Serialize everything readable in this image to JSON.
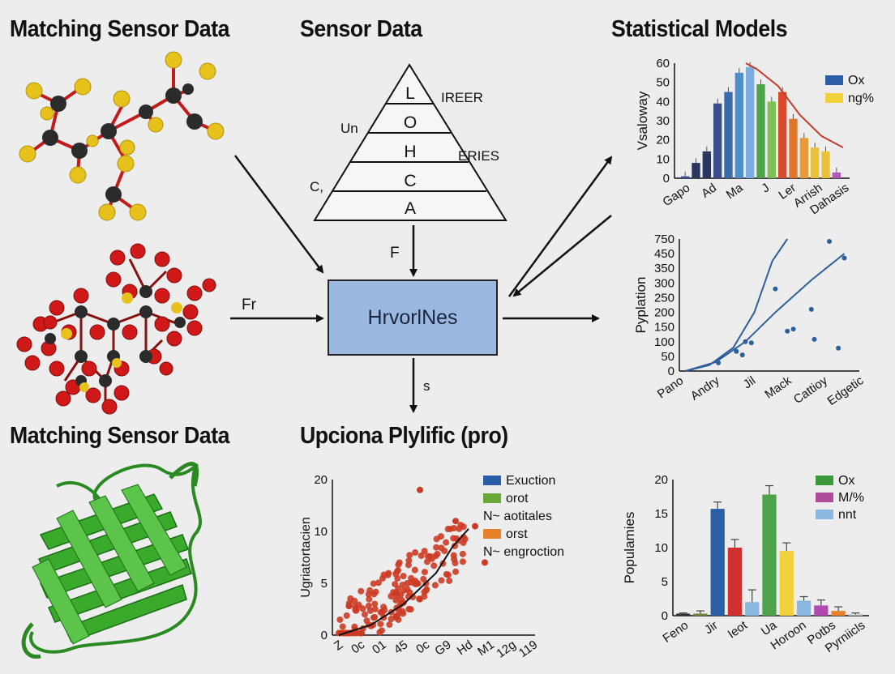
{
  "titles": {
    "top_left": "Matching Sensor Data",
    "top_center": "Sensor Data",
    "top_right": "Statistical Models",
    "bottom_left": "Matching Sensor Data",
    "bottom_center": "Upciona Plylific (pro)"
  },
  "pyramid": {
    "levels": [
      "L",
      "O",
      "H",
      "C",
      "A"
    ],
    "side_labels": {
      "right_upper": "IREER",
      "left_upper": "Un",
      "right_middle": "ERIES",
      "left_lower": "C,"
    }
  },
  "center_box": {
    "label": "HrvorlNes"
  },
  "arrow_labels": {
    "top": "F",
    "left": "Fr",
    "bottom": "s"
  },
  "colors": {
    "box": "#9ab8e0",
    "molecule_yellow": "#e7c21c",
    "molecule_red": "#d01818",
    "molecule_dark": "#2b2b2b",
    "protein": "#3aaa2c",
    "trend": "#2f5e9c",
    "curve_red": "#c83a2a",
    "scatter": "#cc3b25"
  },
  "chart_data": [
    {
      "type": "bar",
      "ylabel": "Vsaloway",
      "ylim": [
        0,
        60
      ],
      "yticks": [
        0,
        10,
        20,
        30,
        40,
        50,
        60
      ],
      "xtick_labels": [
        "Gapo",
        "Ad",
        "Ma",
        "J",
        "Ler",
        "Arrish",
        "Dahasis"
      ],
      "values": [
        1,
        8,
        14,
        39,
        45,
        55,
        58,
        49,
        40,
        45,
        31,
        21,
        16,
        14,
        3
      ],
      "bar_colors": [
        "#3a4aa0",
        "#2a3560",
        "#2a3560",
        "#3a4f88",
        "#3d6aaa",
        "#4f8ecc",
        "#7aaee0",
        "#4ea24a",
        "#7ec056",
        "#d94b2c",
        "#e0762a",
        "#e89a3a",
        "#e8c13a",
        "#e8c13a",
        "#b05ab8"
      ],
      "trend_curve": [
        [
          6,
          60
        ],
        [
          7,
          57
        ],
        [
          9,
          48
        ],
        [
          11,
          33
        ],
        [
          13,
          22
        ],
        [
          15,
          16
        ]
      ],
      "legend": [
        {
          "name": "Ox",
          "color": "#2a5fa8"
        },
        {
          "name": "ng%",
          "color": "#f2d23a"
        }
      ],
      "legend_position": "top-right"
    },
    {
      "type": "scatter",
      "ylabel": "Pyplation",
      "ylim": [
        0,
        750
      ],
      "yticks": [
        0,
        50,
        100,
        150,
        200,
        250,
        300,
        350,
        450,
        750
      ],
      "xtick_labels": [
        "Pano",
        "Andry",
        "Jil",
        "Mack",
        "Cattioy",
        "Edgetic"
      ],
      "xlim": [
        0,
        6
      ],
      "points": [
        [
          1.3,
          28
        ],
        [
          1.9,
          67
        ],
        [
          2.1,
          55
        ],
        [
          2.2,
          100
        ],
        [
          2.4,
          96
        ],
        [
          3.2,
          280
        ],
        [
          3.6,
          136
        ],
        [
          3.8,
          143
        ],
        [
          4.4,
          210
        ],
        [
          4.5,
          108
        ],
        [
          5.0,
          700
        ],
        [
          5.3,
          78
        ],
        [
          5.5,
          420
        ]
      ],
      "curves": [
        [
          [
            0.2,
            0
          ],
          [
            1.0,
            20
          ],
          [
            1.8,
            80
          ],
          [
            2.5,
            200
          ],
          [
            3.1,
            400
          ],
          [
            3.6,
            760
          ]
        ],
        [
          [
            0.2,
            0
          ],
          [
            1.2,
            30
          ],
          [
            2.2,
            100
          ],
          [
            3.2,
            200
          ],
          [
            4.4,
            310
          ],
          [
            5.5,
            450
          ]
        ]
      ]
    },
    {
      "type": "scatter",
      "ylabel": "Ugriatortacien",
      "ylim": [
        0,
        20
      ],
      "yticks": [
        0,
        5,
        10,
        20
      ],
      "xtick_labels": [
        "Z",
        "0c",
        "01",
        "45",
        "0c",
        "G9",
        "Hd",
        "M1",
        "12g",
        "119"
      ],
      "legend": [
        {
          "name": "Exuction",
          "color": "#2a5fa8"
        },
        {
          "name": "orot",
          "color": "#6aa83a"
        },
        {
          "name": "N~ aotitales",
          "color": ""
        },
        {
          "name": "orst",
          "color": "#e8822a"
        },
        {
          "name": "N~ engroction",
          "color": ""
        }
      ],
      "legend_position": "top-right",
      "points_note": "dense red cluster along increasing trend",
      "trend_curve": [
        [
          0,
          0
        ],
        [
          2,
          1
        ],
        [
          4,
          3
        ],
        [
          6,
          6
        ],
        [
          7,
          8.5
        ],
        [
          8,
          10.5
        ]
      ]
    },
    {
      "type": "bar",
      "ylabel": "Populamies",
      "ylim": [
        0,
        20
      ],
      "yticks": [
        0,
        5,
        10,
        15,
        20
      ],
      "xtick_labels": [
        "Feno",
        "Jir",
        "Ieot",
        "Ua",
        "Horoon",
        "Potbs",
        "Pyrniicls"
      ],
      "values": [
        0.3,
        0.3,
        15.7,
        10,
        2,
        17.8,
        9.5,
        2.2,
        1.5,
        0.7,
        0.2
      ],
      "errors": [
        0.1,
        0.4,
        1.0,
        1.2,
        1.8,
        1.3,
        1.2,
        0.6,
        0.8,
        0.6,
        0.2
      ],
      "bar_colors": [
        "#333333",
        "#6a8a3a",
        "#2a5fa8",
        "#d03030",
        "#8ab8e0",
        "#4ea24a",
        "#f2d23a",
        "#8ab8e0",
        "#b04ab0",
        "#e8822a",
        "#bbbbbb"
      ],
      "legend": [
        {
          "name": "Ox",
          "color": "#3a9a3a"
        },
        {
          "name": "M/%",
          "color": "#b04a9a"
        },
        {
          "name": "nnt",
          "color": "#8ab8e0"
        }
      ],
      "legend_position": "top-right"
    }
  ]
}
